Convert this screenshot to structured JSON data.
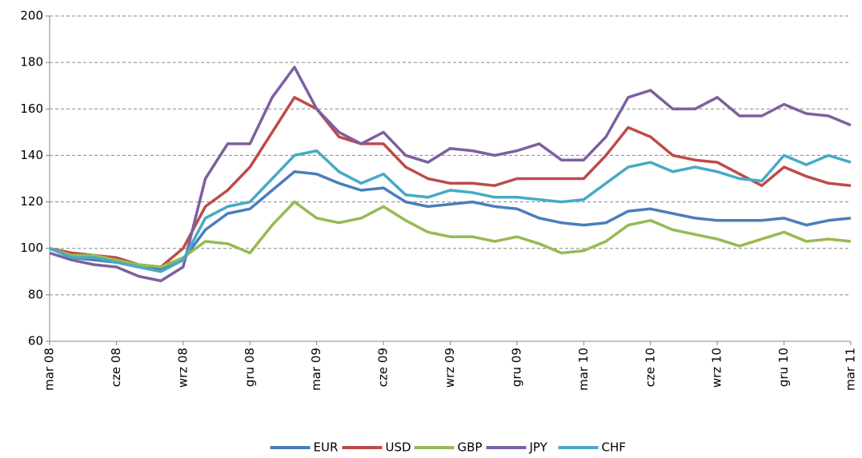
{
  "chart_data": {
    "type": "line",
    "categories": [
      "mar 08",
      null,
      null,
      "cze 08",
      null,
      null,
      "wrz 08",
      null,
      null,
      "gru 08",
      null,
      null,
      "mar 09",
      null,
      null,
      "cze 09",
      null,
      null,
      "wrz 09",
      null,
      null,
      "gru 09",
      null,
      null,
      "mar 10",
      null,
      null,
      "cze 10",
      null,
      null,
      "wrz 10",
      null,
      null,
      "gru 10",
      null,
      null,
      "mar 11"
    ],
    "series": [
      {
        "name": "EUR",
        "color": "#4a7ebb",
        "values": [
          100,
          96,
          95,
          94,
          92,
          91,
          95,
          108,
          115,
          117,
          125,
          133,
          132,
          128,
          125,
          126,
          120,
          118,
          119,
          120,
          118,
          117,
          113,
          111,
          110,
          111,
          116,
          117,
          115,
          113,
          112,
          112,
          112,
          113,
          110,
          112,
          113
        ]
      },
      {
        "name": "USD",
        "color": "#be4b48",
        "values": [
          100,
          98,
          97,
          96,
          93,
          92,
          100,
          118,
          125,
          135,
          150,
          165,
          160,
          148,
          145,
          145,
          135,
          130,
          128,
          128,
          127,
          130,
          130,
          130,
          130,
          140,
          152,
          148,
          140,
          138,
          137,
          132,
          127,
          135,
          131,
          128,
          127
        ]
      },
      {
        "name": "GBP",
        "color": "#98b954",
        "values": [
          100,
          97,
          97,
          95,
          93,
          92,
          96,
          103,
          102,
          98,
          110,
          120,
          113,
          111,
          113,
          118,
          112,
          107,
          105,
          105,
          103,
          105,
          102,
          98,
          99,
          103,
          110,
          112,
          108,
          106,
          104,
          101,
          104,
          107,
          103,
          104,
          103
        ]
      },
      {
        "name": "JPY",
        "color": "#7d60a0",
        "values": [
          98,
          95,
          93,
          92,
          88,
          86,
          92,
          130,
          145,
          145,
          165,
          178,
          160,
          150,
          145,
          150,
          140,
          137,
          143,
          142,
          140,
          142,
          145,
          138,
          138,
          148,
          165,
          168,
          160,
          160,
          165,
          157,
          157,
          162,
          158,
          157,
          153
        ]
      },
      {
        "name": "CHF",
        "color": "#46aac5",
        "values": [
          100,
          96,
          96,
          94,
          92,
          90,
          95,
          113,
          118,
          120,
          130,
          140,
          142,
          133,
          128,
          132,
          123,
          122,
          125,
          124,
          122,
          122,
          121,
          120,
          121,
          128,
          135,
          137,
          133,
          135,
          133,
          130,
          129,
          140,
          136,
          140,
          137
        ]
      }
    ],
    "ylim": [
      60,
      200
    ],
    "yticks": [
      60,
      80,
      100,
      120,
      140,
      160,
      180,
      200
    ],
    "grid": true,
    "legend": "bottom"
  }
}
